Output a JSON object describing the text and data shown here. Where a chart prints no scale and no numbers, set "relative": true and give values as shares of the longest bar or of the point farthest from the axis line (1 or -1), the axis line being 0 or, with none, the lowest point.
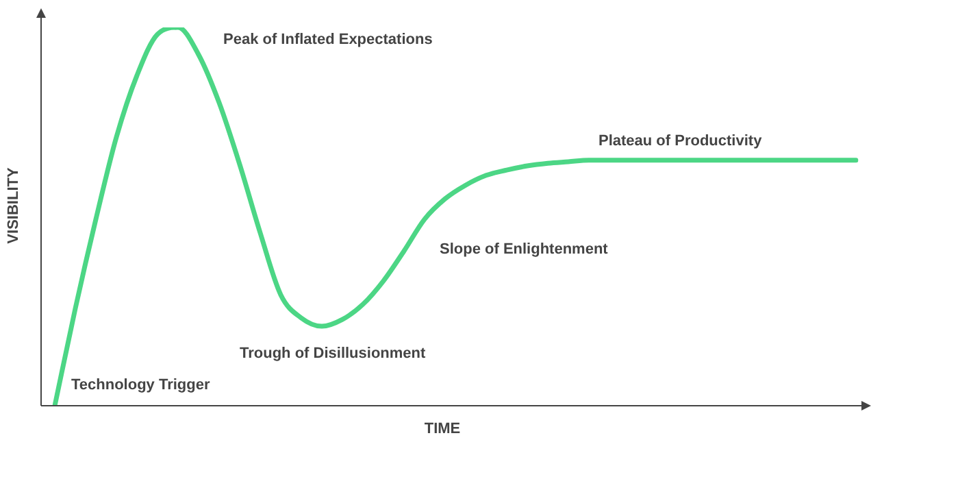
{
  "chart_data": {
    "type": "line",
    "relative": true,
    "xlabel": "TIME",
    "ylabel": "VISIBILITY",
    "color": "#4cd685",
    "marker": "none",
    "categories": [
      null,
      null,
      null,
      null,
      null,
      null,
      null,
      null,
      null,
      null,
      null,
      null,
      null,
      null,
      null,
      null,
      null,
      null,
      null,
      null,
      null,
      null,
      null,
      null,
      null,
      null,
      null,
      null,
      null,
      null,
      null,
      null,
      null,
      null,
      null,
      null,
      null,
      null,
      null,
      null
    ],
    "values": [
      0,
      0.257,
      0.493,
      0.71,
      0.873,
      0.982,
      1,
      0.928,
      0.801,
      0.638,
      0.457,
      0.293,
      0.232,
      0.21,
      0.228,
      0.268,
      0.33,
      0.409,
      0.493,
      0.547,
      0.583,
      0.609,
      0.623,
      0.634,
      0.641,
      0.645,
      0.649,
      0.649,
      0.649,
      0.649,
      0.649,
      0.649,
      0.649,
      0.649,
      0.649,
      0.649,
      0.649,
      0.649,
      0.649,
      0.649
    ],
    "annotations": [
      "Peak of Inflated Expectations",
      "Plateau of Productivity",
      "Slope of Enlightenment",
      "Trough of Disillusionment",
      "Technology Trigger"
    ]
  }
}
